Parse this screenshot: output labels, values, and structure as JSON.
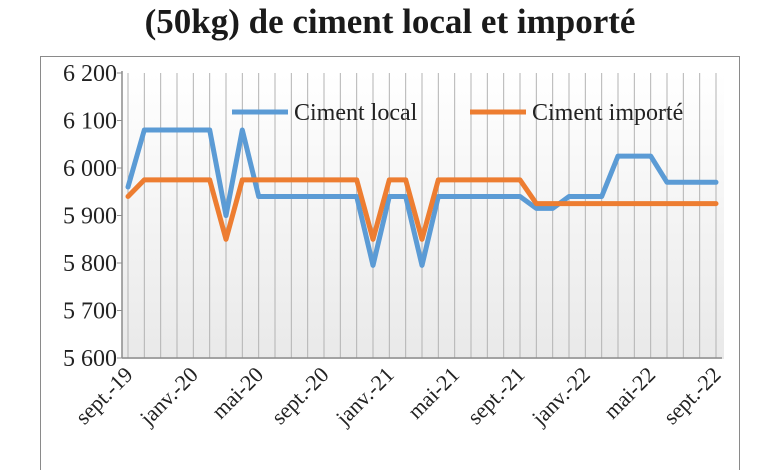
{
  "chart_data": {
    "type": "line",
    "title": "(50kg) de ciment local et importé",
    "xlabel": "",
    "ylabel": "",
    "ylim": [
      5600,
      6200
    ],
    "y_ticks": [
      "5 600",
      "5 700",
      "5 800",
      "5 900",
      "6 000",
      "6 100",
      "6 200"
    ],
    "x_tick_labels": [
      "sept.-19",
      "janv.-20",
      "mai-20",
      "sept.-20",
      "janv.-21",
      "mai-21",
      "sept.-21",
      "janv.-22",
      "mai-22",
      "sept.-22"
    ],
    "x": [
      "sept.-19",
      "oct.-19",
      "nov.-19",
      "déc.-19",
      "janv.-20",
      "févr.-20",
      "mars-20",
      "avr.-20",
      "mai-20",
      "juin-20",
      "juil.-20",
      "août-20",
      "sept.-20",
      "oct.-20",
      "nov.-20",
      "déc.-20",
      "janv.-21",
      "févr.-21",
      "mars-21",
      "avr.-21",
      "mai-21",
      "juin-21",
      "juil.-21",
      "août-21",
      "sept.-21",
      "oct.-21",
      "nov.-21",
      "déc.-21",
      "janv.-22",
      "févr.-22",
      "mars-22",
      "avr.-22",
      "mai-22",
      "juin-22",
      "juil.-22",
      "août-22",
      "sept.-22"
    ],
    "grid": "vertical",
    "legend_position": "top",
    "series": [
      {
        "name": "Ciment local",
        "color": "#5b9bd5",
        "values": [
          5960,
          6080,
          6080,
          6080,
          6080,
          6080,
          5900,
          6080,
          5940,
          5940,
          5940,
          5940,
          5940,
          5940,
          5940,
          5795,
          5940,
          5940,
          5795,
          5940,
          5940,
          5940,
          5940,
          5940,
          5940,
          5915,
          5915,
          5940,
          5940,
          5940,
          6025,
          6025,
          6025,
          5970,
          5970,
          5970,
          5970
        ]
      },
      {
        "name": "Ciment importé",
        "color": "#ed7d31",
        "values": [
          5940,
          5975,
          5975,
          5975,
          5975,
          5975,
          5850,
          5975,
          5975,
          5975,
          5975,
          5975,
          5975,
          5975,
          5975,
          5850,
          5975,
          5975,
          5850,
          5975,
          5975,
          5975,
          5975,
          5975,
          5975,
          5925,
          5925,
          5925,
          5925,
          5925,
          5925,
          5925,
          5925,
          5925,
          5925,
          5925,
          5925
        ]
      }
    ]
  }
}
